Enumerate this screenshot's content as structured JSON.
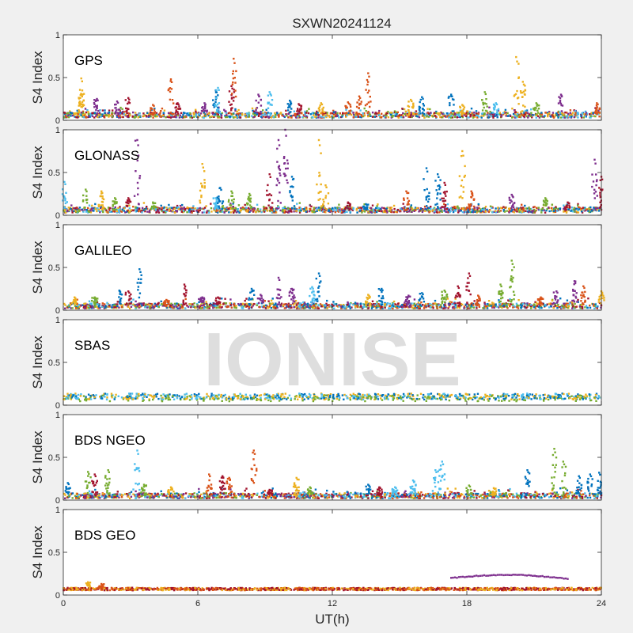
{
  "figure": {
    "title": "SXWN20241124",
    "xlabel": "UT(h)",
    "watermark": "IONISE",
    "background": "#f0f0f0",
    "axes_background": "#ffffff"
  },
  "chart_data": {
    "type": "scatter",
    "title": "SXWN20241124",
    "xlabel": "UT(h)",
    "ylabel": "S4 Index",
    "xlim": [
      0,
      24
    ],
    "ylim": [
      0,
      1
    ],
    "xticks": [
      "0",
      "6",
      "12",
      "18",
      "24"
    ],
    "xtick_values": [
      0,
      6,
      12,
      18,
      24
    ],
    "yticks": [
      "0",
      "0.5",
      "1"
    ],
    "ytick_values": [
      0,
      0.5,
      1
    ],
    "grid": false,
    "series_colors": [
      "#0072bd",
      "#d95319",
      "#edb120",
      "#7e2f8e",
      "#77ac30",
      "#4dbeee",
      "#a2142f"
    ],
    "panels": [
      {
        "name": "GPS",
        "baseline": 0.06,
        "peaks": [
          [
            0.8,
            0.49,
            2
          ],
          [
            0.8,
            0.3,
            2
          ],
          [
            1.5,
            0.25,
            3
          ],
          [
            2.4,
            0.22,
            3
          ],
          [
            2.9,
            0.26,
            6
          ],
          [
            4.0,
            0.18,
            1
          ],
          [
            4.8,
            0.48,
            1
          ],
          [
            5.1,
            0.2,
            6
          ],
          [
            6.3,
            0.2,
            3
          ],
          [
            6.8,
            0.35,
            0
          ],
          [
            6.9,
            0.38,
            5
          ],
          [
            7.5,
            0.4,
            6
          ],
          [
            7.6,
            0.72,
            1
          ],
          [
            8.7,
            0.3,
            3
          ],
          [
            9.2,
            0.33,
            5
          ],
          [
            10.1,
            0.23,
            0
          ],
          [
            10.5,
            0.19,
            6
          ],
          [
            11.5,
            0.2,
            2
          ],
          [
            12.7,
            0.21,
            1
          ],
          [
            13.2,
            0.28,
            1
          ],
          [
            13.6,
            0.55,
            1
          ],
          [
            15.5,
            0.24,
            2
          ],
          [
            16.0,
            0.27,
            0
          ],
          [
            17.3,
            0.3,
            0
          ],
          [
            17.8,
            0.18,
            2
          ],
          [
            18.8,
            0.33,
            4
          ],
          [
            19.3,
            0.2,
            5
          ],
          [
            20.2,
            0.74,
            2
          ],
          [
            20.5,
            0.45,
            2
          ],
          [
            21.1,
            0.2,
            4
          ],
          [
            22.2,
            0.3,
            3
          ],
          [
            23.8,
            0.2,
            1
          ]
        ]
      },
      {
        "name": "GLONASS",
        "baseline": 0.06,
        "peaks": [
          [
            0.05,
            0.39,
            5
          ],
          [
            1.0,
            0.3,
            4
          ],
          [
            1.7,
            0.28,
            2
          ],
          [
            2.3,
            0.2,
            4
          ],
          [
            2.9,
            0.2,
            6
          ],
          [
            3.3,
            0.88,
            3
          ],
          [
            4.0,
            0.15,
            4
          ],
          [
            6.2,
            0.6,
            2
          ],
          [
            6.8,
            0.2,
            5
          ],
          [
            7.0,
            0.32,
            0
          ],
          [
            7.5,
            0.28,
            4
          ],
          [
            8.3,
            0.25,
            4
          ],
          [
            9.2,
            0.48,
            6
          ],
          [
            9.6,
            0.88,
            3
          ],
          [
            9.9,
            1.0,
            3
          ],
          [
            10.2,
            0.45,
            0
          ],
          [
            11.4,
            0.88,
            2
          ],
          [
            11.7,
            0.35,
            2
          ],
          [
            12.7,
            0.15,
            6
          ],
          [
            13.5,
            0.13,
            0
          ],
          [
            15.3,
            0.28,
            1
          ],
          [
            16.2,
            0.55,
            0
          ],
          [
            16.7,
            0.48,
            0
          ],
          [
            17.0,
            0.38,
            6
          ],
          [
            17.8,
            0.75,
            2
          ],
          [
            18.2,
            0.28,
            1
          ],
          [
            20.0,
            0.24,
            3
          ],
          [
            21.5,
            0.2,
            4
          ],
          [
            22.5,
            0.15,
            6
          ],
          [
            23.7,
            0.65,
            3
          ],
          [
            24.0,
            0.45,
            6
          ]
        ]
      },
      {
        "name": "GALILEO",
        "baseline": 0.05,
        "peaks": [
          [
            0.5,
            0.15,
            2
          ],
          [
            1.4,
            0.15,
            4
          ],
          [
            2.5,
            0.23,
            0
          ],
          [
            2.9,
            0.22,
            6
          ],
          [
            3.4,
            0.48,
            0
          ],
          [
            4.6,
            0.12,
            1
          ],
          [
            5.4,
            0.3,
            6
          ],
          [
            6.2,
            0.15,
            3
          ],
          [
            6.9,
            0.15,
            6
          ],
          [
            8.4,
            0.25,
            0
          ],
          [
            8.8,
            0.18,
            3
          ],
          [
            9.6,
            0.38,
            3
          ],
          [
            10.2,
            0.25,
            3
          ],
          [
            11.1,
            0.27,
            5
          ],
          [
            11.4,
            0.43,
            0
          ],
          [
            13.6,
            0.18,
            2
          ],
          [
            14.2,
            0.25,
            0
          ],
          [
            15.4,
            0.17,
            3
          ],
          [
            16.0,
            0.2,
            0
          ],
          [
            17.0,
            0.23,
            4
          ],
          [
            17.6,
            0.28,
            6
          ],
          [
            18.1,
            0.43,
            6
          ],
          [
            18.5,
            0.17,
            1
          ],
          [
            19.5,
            0.3,
            4
          ],
          [
            20.0,
            0.58,
            4
          ],
          [
            21.3,
            0.15,
            1
          ],
          [
            22.0,
            0.22,
            3
          ],
          [
            22.8,
            0.34,
            3
          ],
          [
            23.2,
            0.28,
            1
          ],
          [
            24.0,
            0.22,
            2
          ]
        ]
      },
      {
        "name": "SBAS",
        "baseline": 0.1,
        "peaks": []
      },
      {
        "name": "BDS NGEO",
        "baseline": 0.05,
        "peaks": [
          [
            0.2,
            0.2,
            0
          ],
          [
            1.1,
            0.33,
            4
          ],
          [
            1.4,
            0.3,
            6
          ],
          [
            2.0,
            0.35,
            4
          ],
          [
            3.3,
            0.58,
            5
          ],
          [
            3.6,
            0.18,
            4
          ],
          [
            4.8,
            0.15,
            2
          ],
          [
            6.5,
            0.3,
            1
          ],
          [
            7.1,
            0.28,
            6
          ],
          [
            7.4,
            0.26,
            1
          ],
          [
            8.5,
            0.58,
            1
          ],
          [
            9.2,
            0.12,
            6
          ],
          [
            10.4,
            0.26,
            2
          ],
          [
            11.0,
            0.15,
            4
          ],
          [
            13.6,
            0.18,
            0
          ],
          [
            14.1,
            0.15,
            6
          ],
          [
            14.8,
            0.15,
            5
          ],
          [
            15.6,
            0.23,
            5
          ],
          [
            16.6,
            0.35,
            5
          ],
          [
            16.9,
            0.45,
            5
          ],
          [
            18.1,
            0.17,
            4
          ],
          [
            19.2,
            0.14,
            2
          ],
          [
            20.7,
            0.35,
            0
          ],
          [
            21.9,
            0.6,
            4
          ],
          [
            22.3,
            0.45,
            4
          ],
          [
            23.0,
            0.28,
            0
          ],
          [
            23.5,
            0.3,
            0
          ],
          [
            23.9,
            0.32,
            0
          ]
        ]
      },
      {
        "name": "BDS GEO",
        "baseline": 0.07,
        "peaks": [
          [
            1.1,
            0.15,
            2
          ],
          [
            1.7,
            0.13,
            1
          ]
        ],
        "arc": {
          "x_start": 17.3,
          "x_end": 22.5,
          "y_start": 0.2,
          "y_peak": 0.24,
          "y_end": 0.18,
          "color_index": 3
        }
      }
    ]
  }
}
